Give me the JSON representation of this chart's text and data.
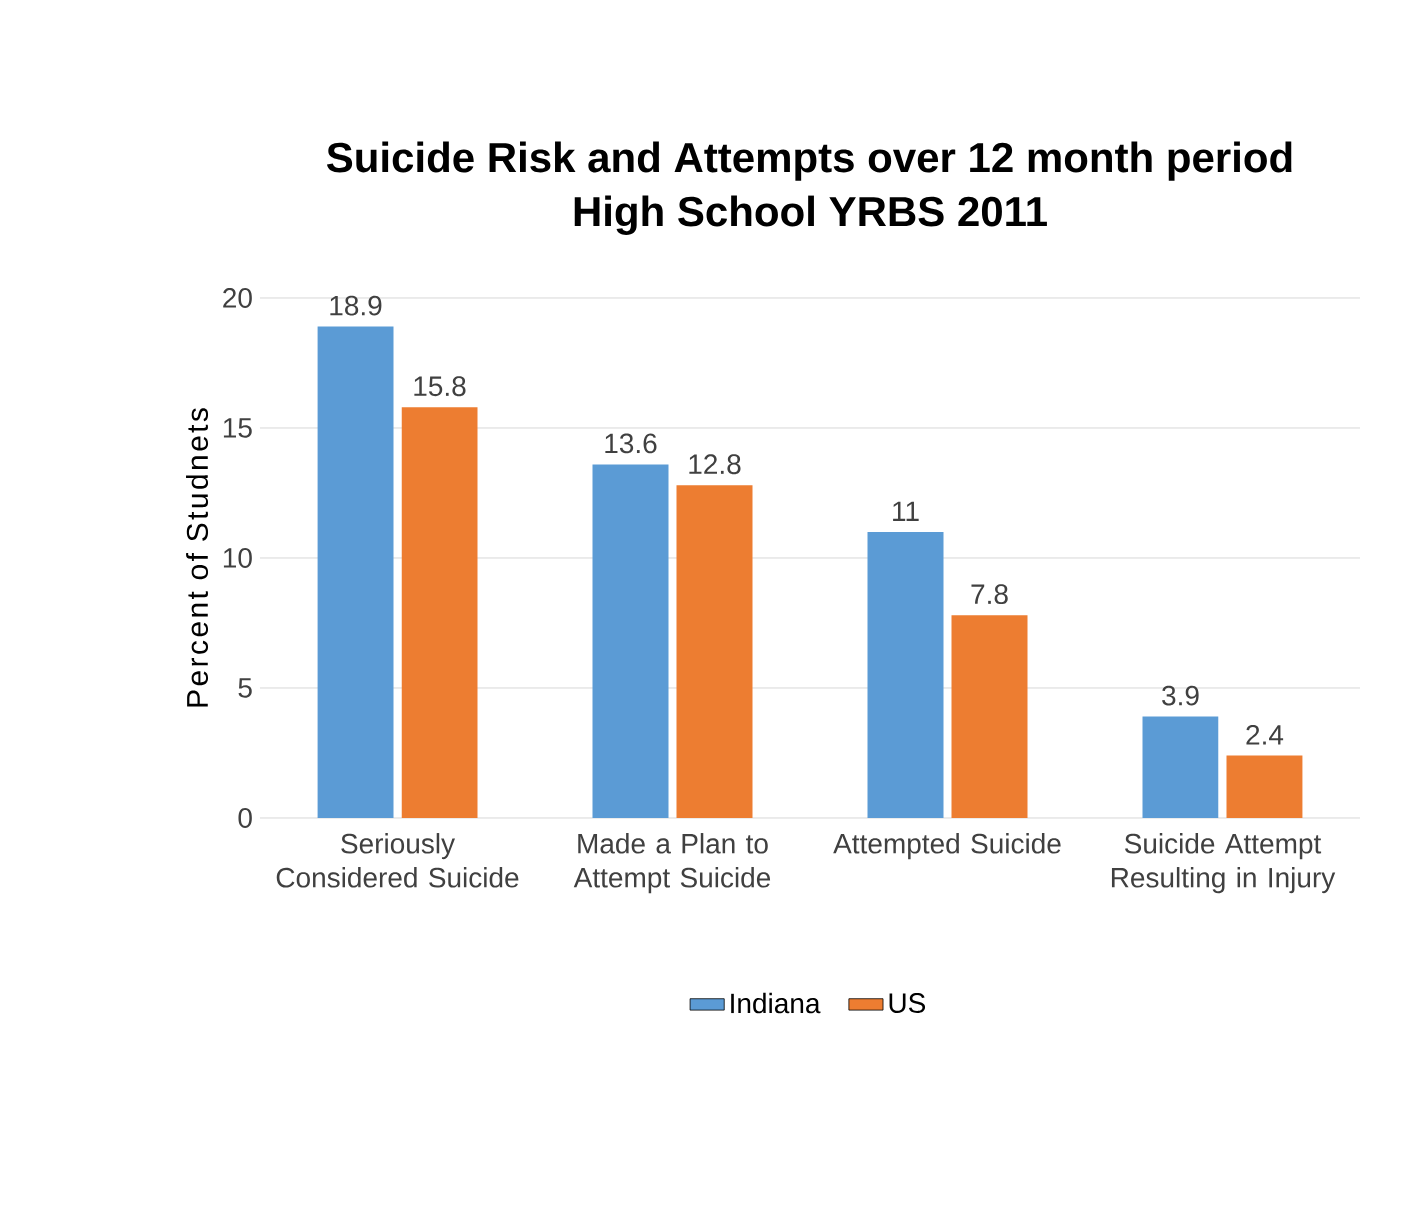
{
  "chart_data": {
    "type": "bar",
    "title": "Suicide Risk and Attempts over 12 month period",
    "subtitle": "High School YRBS 2011",
    "ylabel": "Percent of Studnets",
    "categories": [
      "Seriously Considered Suicide",
      "Made a Plan to Attempt Suicide",
      "Attempted Suicide",
      "Suicide Attempt Resulting in Injury"
    ],
    "series": [
      {
        "name": "Indiana",
        "color": "#5b9bd5",
        "values": [
          18.9,
          13.6,
          11,
          3.9
        ]
      },
      {
        "name": "US",
        "color": "#ed7d31",
        "values": [
          15.8,
          12.8,
          7.8,
          2.4
        ]
      }
    ],
    "ylim": [
      0,
      20
    ],
    "yticks": [
      0,
      5,
      10,
      15,
      20
    ],
    "grid": "y",
    "legend": "bottom",
    "data_labels": true
  }
}
